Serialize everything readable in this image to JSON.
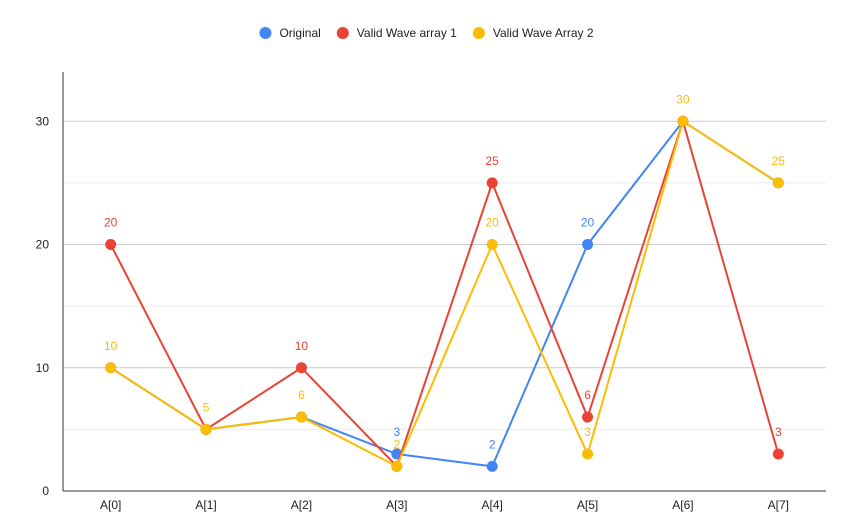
{
  "chart_data": {
    "type": "line",
    "title": "",
    "xlabel": "",
    "ylabel": "",
    "categories": [
      "A[0]",
      "A[1]",
      "A[2]",
      "A[3]",
      "A[4]",
      "A[5]",
      "A[6]",
      "A[7]"
    ],
    "ylim": [
      0,
      34
    ],
    "yticks": [
      0,
      10,
      20,
      30
    ],
    "grid": true,
    "legend_position": "top",
    "series": [
      {
        "name": "Original",
        "color": "#4285F4",
        "values": [
          10,
          5,
          6,
          3,
          2,
          20,
          30,
          25
        ],
        "data_labels": [
          null,
          null,
          null,
          "3",
          "2",
          "20",
          null,
          null
        ]
      },
      {
        "name": "Valid Wave array 1",
        "color": "#EA4335",
        "values": [
          20,
          5,
          10,
          2,
          25,
          6,
          30,
          3
        ],
        "data_labels": [
          "20",
          null,
          "10",
          null,
          "25",
          "6",
          null,
          "3"
        ]
      },
      {
        "name": "Valid Wave Array 2",
        "color": "#FBBC04",
        "values": [
          10,
          5,
          6,
          2,
          20,
          3,
          30,
          25
        ],
        "data_labels": [
          "10",
          "5",
          "6",
          "2",
          "20",
          "3",
          "30",
          "25"
        ]
      }
    ]
  }
}
